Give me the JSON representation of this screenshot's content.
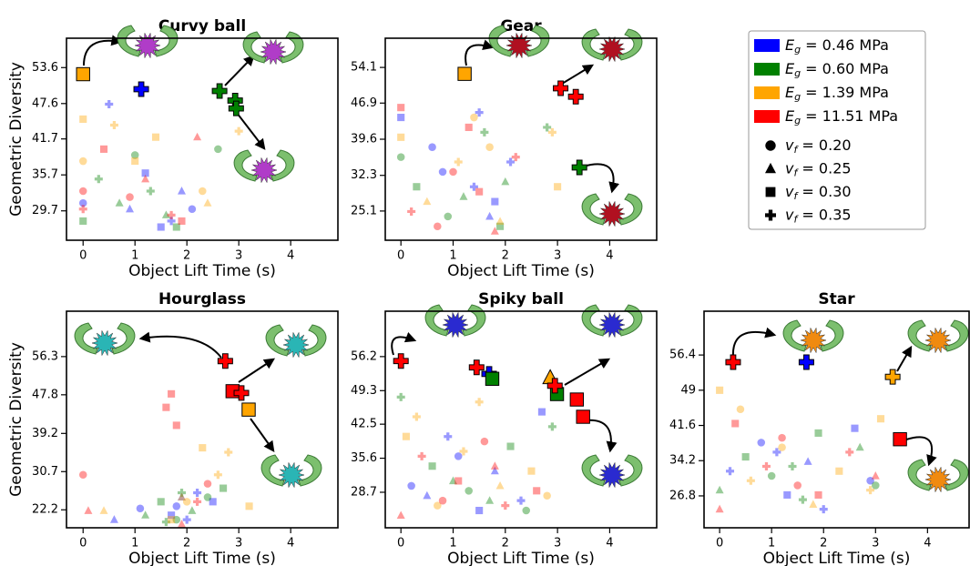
{
  "chart_data": [
    {
      "type": "scatter",
      "title": "Curvy ball",
      "xlabel": "Object Lift Time (s)",
      "ylabel": "Geometric Diversity",
      "xlim": [
        -0.32,
        4.91
      ],
      "xticks": [
        0,
        1,
        2,
        3,
        4
      ],
      "ylim": [
        24.8,
        58.5
      ],
      "yticks": [
        29.7,
        35.7,
        41.7,
        47.6,
        53.6
      ],
      "series": [
        {
          "color": "#0000ff",
          "x": [
            0,
            0.9,
            1.5,
            1.7,
            1.9,
            1.2,
            2.1,
            0.5
          ],
          "y": [
            31,
            30,
            27,
            28,
            33,
            36,
            30,
            47.5
          ],
          "markers": [
            "o",
            "^",
            "s",
            "P",
            "^",
            "s",
            "o",
            "P"
          ]
        },
        {
          "color": "#008000",
          "x": [
            0,
            0.3,
            1.0,
            1.6,
            1.8,
            1.3,
            0.7,
            2.6
          ],
          "y": [
            28,
            35,
            39,
            29,
            27,
            33,
            31,
            40
          ],
          "markers": [
            "s",
            "P",
            "o",
            "^",
            "s",
            "P",
            "^",
            "o"
          ]
        },
        {
          "color": "#ffa500",
          "x": [
            0,
            0.6,
            1.0,
            2.3,
            2.4,
            1.4,
            3.0,
            0
          ],
          "y": [
            45,
            44,
            38,
            33,
            31,
            42,
            43,
            38
          ],
          "markers": [
            "s",
            "P",
            "s",
            "o",
            "^",
            "s",
            "P",
            "o"
          ]
        },
        {
          "color": "#ff0000",
          "x": [
            0,
            0.4,
            1.2,
            1.7,
            1.9,
            0.9,
            2.2,
            0
          ],
          "y": [
            33,
            40,
            35,
            29,
            28,
            32,
            42,
            30
          ],
          "markers": [
            "o",
            "s",
            "^",
            "P",
            "s",
            "o",
            "^",
            "P"
          ]
        }
      ],
      "highlights": {
        "x": [
          0,
          1.12,
          2.63,
          2.93,
          2.95
        ],
        "y": [
          52.5,
          50.0,
          49.7,
          48.1,
          46.8
        ],
        "colors": [
          "#ffa500",
          "#0000ff",
          "#008000",
          "#008000",
          "#008000"
        ],
        "markers": [
          "s",
          "P",
          "P",
          "P",
          "P"
        ]
      },
      "object_color": "#b03cc8"
    },
    {
      "type": "scatter",
      "title": "Gear",
      "xlabel": "Object Lift Time (s)",
      "xlim": [
        -0.3,
        4.9
      ],
      "xticks": [
        0,
        1,
        2,
        3,
        4
      ],
      "ylim": [
        19.2,
        60.0
      ],
      "yticks": [
        25.1,
        32.3,
        39.6,
        46.9,
        54.1
      ],
      "series": [
        {
          "color": "#0000ff",
          "x": [
            0,
            0.6,
            1.4,
            1.7,
            1.8,
            2.1,
            0.8,
            1.5
          ],
          "y": [
            44,
            38,
            30,
            24,
            27,
            35,
            33,
            45
          ],
          "markers": [
            "s",
            "o",
            "P",
            "^",
            "s",
            "P",
            "o",
            "P"
          ]
        },
        {
          "color": "#008000",
          "x": [
            0,
            0.3,
            1.2,
            1.6,
            1.9,
            2.8,
            0.9,
            2.0
          ],
          "y": [
            36,
            30,
            28,
            41,
            22,
            42,
            24,
            31
          ],
          "markers": [
            "o",
            "s",
            "^",
            "P",
            "s",
            "P",
            "o",
            "^"
          ]
        },
        {
          "color": "#ffa500",
          "x": [
            0,
            1.1,
            1.7,
            1.9,
            2.9,
            3.0,
            0.5,
            1.4
          ],
          "y": [
            40,
            35,
            38,
            23,
            41,
            30,
            27,
            44
          ],
          "markers": [
            "s",
            "P",
            "o",
            "^",
            "P",
            "s",
            "^",
            "o"
          ]
        },
        {
          "color": "#ff0000",
          "x": [
            0,
            0.2,
            1.0,
            1.5,
            1.8,
            2.2,
            1.3,
            0.7
          ],
          "y": [
            46,
            25,
            33,
            29,
            21,
            36,
            42,
            22
          ],
          "markers": [
            "s",
            "P",
            "o",
            "s",
            "^",
            "P",
            "s",
            "o"
          ]
        }
      ],
      "highlights": {
        "x": [
          1.22,
          3.06,
          3.35,
          3.42
        ],
        "y": [
          52.8,
          49.9,
          48.2,
          33.9
        ],
        "colors": [
          "#ffa500",
          "#ff0000",
          "#ff0000",
          "#008000"
        ],
        "markers": [
          "s",
          "P",
          "P",
          "P"
        ]
      },
      "object_color": "#b01020"
    },
    {
      "type": "scatter",
      "title": "Hourglass",
      "xlabel": "Object Lift Time (s)",
      "ylabel": "Geometric Diversity",
      "xlim": [
        -0.32,
        4.91
      ],
      "xticks": [
        0,
        1,
        2,
        3,
        4
      ],
      "ylim": [
        18.2,
        66.4
      ],
      "yticks": [
        22.2,
        30.7,
        39.2,
        47.8,
        56.3
      ],
      "series": [
        {
          "color": "#0000ff",
          "x": [
            1.1,
            1.7,
            1.9,
            2.0,
            2.5,
            1.8,
            0.6,
            2.2
          ],
          "y": [
            22.5,
            21,
            25,
            20,
            24,
            23,
            20,
            26
          ],
          "markers": [
            "o",
            "s",
            "^",
            "P",
            "s",
            "o",
            "^",
            "P"
          ]
        },
        {
          "color": "#008000",
          "x": [
            1.5,
            1.8,
            1.9,
            2.1,
            2.7,
            1.6,
            2.4,
            1.2
          ],
          "y": [
            24,
            20,
            26,
            22,
            27,
            19.5,
            25,
            21
          ],
          "markers": [
            "s",
            "o",
            "P",
            "^",
            "s",
            "P",
            "o",
            "^"
          ]
        },
        {
          "color": "#ffa500",
          "x": [
            0.4,
            1.7,
            2.0,
            2.6,
            3.2,
            2.8,
            1.9,
            2.3
          ],
          "y": [
            22,
            20,
            24,
            30,
            23,
            35,
            25,
            36
          ],
          "markers": [
            "^",
            "s",
            "o",
            "P",
            "s",
            "P",
            "^",
            "s"
          ]
        },
        {
          "color": "#ff0000",
          "x": [
            0,
            0.1,
            1.6,
            1.8,
            1.9,
            2.2,
            1.7,
            2.4
          ],
          "y": [
            30,
            22,
            45,
            41,
            19,
            24,
            48,
            28
          ],
          "markers": [
            "o",
            "^",
            "s",
            "s",
            "^",
            "P",
            "s",
            "o"
          ]
        }
      ],
      "highlights": {
        "x": [
          2.74,
          2.88,
          3.05,
          3.19
        ],
        "y": [
          55.3,
          48.6,
          48.2,
          44.5
        ],
        "colors": [
          "#ff0000",
          "#ff0000",
          "#ff0000",
          "#ffa500"
        ],
        "markers": [
          "P",
          "s",
          "P",
          "s"
        ]
      },
      "object_color": "#2ab5b5"
    },
    {
      "type": "scatter",
      "title": "Spiky ball",
      "xlabel": "Object Lift Time (s)",
      "xlim": [
        -0.3,
        4.9
      ],
      "xticks": [
        0,
        1,
        2,
        3,
        4
      ],
      "ylim": [
        21.5,
        65.4
      ],
      "yticks": [
        28.7,
        35.6,
        42.5,
        49.3,
        56.2
      ],
      "series": [
        {
          "color": "#0000ff",
          "x": [
            0.2,
            0.9,
            1.5,
            1.8,
            2.3,
            2.7,
            1.1,
            0.5
          ],
          "y": [
            30,
            40,
            25,
            33,
            27,
            45,
            36,
            28
          ],
          "markers": [
            "o",
            "P",
            "s",
            "^",
            "P",
            "s",
            "o",
            "^"
          ]
        },
        {
          "color": "#008000",
          "x": [
            0,
            0.6,
            1.3,
            1.7,
            2.1,
            2.9,
            1.0,
            2.4
          ],
          "y": [
            48,
            34,
            29,
            27,
            38,
            42,
            31,
            25
          ],
          "markers": [
            "P",
            "s",
            "o",
            "^",
            "s",
            "P",
            "^",
            "o"
          ]
        },
        {
          "color": "#ffa500",
          "x": [
            0.1,
            0.7,
            1.2,
            1.9,
            2.5,
            2.8,
            1.5,
            0.3
          ],
          "y": [
            40,
            26,
            37,
            30,
            33,
            28,
            47,
            44
          ],
          "markers": [
            "s",
            "o",
            "P",
            "^",
            "s",
            "o",
            "P",
            "P"
          ]
        },
        {
          "color": "#ff0000",
          "x": [
            0,
            0.4,
            1.1,
            1.6,
            2.0,
            2.6,
            0.8,
            1.8
          ],
          "y": [
            24,
            36,
            31,
            39,
            26,
            29,
            27,
            34
          ],
          "markers": [
            "^",
            "P",
            "s",
            "o",
            "P",
            "s",
            "o",
            "^"
          ]
        }
      ],
      "highlights": {
        "x": [
          0,
          1.45,
          1.69,
          1.75,
          2.86,
          2.99,
          2.95,
          3.37,
          3.49
        ],
        "y": [
          55.3,
          54.0,
          52.7,
          51.7,
          51.9,
          48.6,
          50.3,
          47.5,
          44.0
        ],
        "colors": [
          "#ff0000",
          "#ff0000",
          "#0000ff",
          "#008000",
          "#ffa500",
          "#008000",
          "#ff0000",
          "#ff0000",
          "#ff0000"
        ],
        "markers": [
          "P",
          "P",
          "P",
          "s",
          "^",
          "s",
          "P",
          "s",
          "s"
        ]
      },
      "object_color": "#2a2ad0"
    },
    {
      "type": "scatter",
      "title": "Star",
      "xlabel": "Object Lift Time (s)",
      "xlim": [
        -0.3,
        4.8
      ],
      "xticks": [
        0,
        1,
        2,
        3,
        4
      ],
      "ylim": [
        20.1,
        65.6
      ],
      "yticks": [
        26.8,
        34.2,
        41.6,
        49.0,
        56.4
      ],
      "series": [
        {
          "color": "#0000ff",
          "x": [
            0.2,
            0.8,
            1.3,
            1.7,
            2.0,
            2.6,
            2.9,
            1.1
          ],
          "y": [
            32,
            38,
            27,
            34,
            24,
            41,
            30,
            36
          ],
          "markers": [
            "P",
            "o",
            "s",
            "^",
            "P",
            "s",
            "o",
            "P"
          ]
        },
        {
          "color": "#008000",
          "x": [
            0,
            0.5,
            1.0,
            1.6,
            1.9,
            2.7,
            3.0,
            1.4
          ],
          "y": [
            28,
            35,
            31,
            26,
            40,
            37,
            29,
            33
          ],
          "markers": [
            "^",
            "s",
            "o",
            "P",
            "s",
            "^",
            "o",
            "P"
          ]
        },
        {
          "color": "#ffa500",
          "x": [
            0,
            0.6,
            1.2,
            1.8,
            2.3,
            2.9,
            3.1,
            0.4
          ],
          "y": [
            49,
            30,
            37,
            25,
            32,
            28,
            43,
            45
          ],
          "markers": [
            "s",
            "P",
            "o",
            "^",
            "s",
            "P",
            "s",
            "o"
          ]
        },
        {
          "color": "#ff0000",
          "x": [
            0,
            0.3,
            0.9,
            1.5,
            1.9,
            2.5,
            3.0,
            1.2
          ],
          "y": [
            24,
            42,
            33,
            29,
            27,
            36,
            31,
            39
          ],
          "markers": [
            "^",
            "s",
            "P",
            "o",
            "s",
            "P",
            "^",
            "o"
          ]
        }
      ],
      "highlights": {
        "x": [
          0.26,
          1.67,
          3.33,
          3.47
        ],
        "y": [
          54.9,
          54.9,
          51.8,
          38.7
        ],
        "colors": [
          "#ff0000",
          "#0000ff",
          "#ffa500",
          "#ff0000"
        ],
        "markers": [
          "P",
          "P",
          "P",
          "s"
        ]
      },
      "object_color": "#f08a10"
    }
  ],
  "legend": {
    "colors": [
      {
        "symbol": "E",
        "sub": "g",
        "text": " = 0.46 MPa",
        "color": "#0000ff"
      },
      {
        "symbol": "E",
        "sub": "g",
        "text": " = 0.60 MPa",
        "color": "#008000"
      },
      {
        "symbol": "E",
        "sub": "g",
        "text": " = 1.39 MPa",
        "color": "#ffa500"
      },
      {
        "symbol": "E",
        "sub": "g",
        "text": " = 11.51 MPa",
        "color": "#ff0000"
      }
    ],
    "markers": [
      {
        "symbol": "v",
        "sub": "f",
        "text": " = 0.20",
        "marker": "o"
      },
      {
        "symbol": "v",
        "sub": "f",
        "text": " = 0.25",
        "marker": "^"
      },
      {
        "symbol": "v",
        "sub": "f",
        "text": " = 0.30",
        "marker": "s"
      },
      {
        "symbol": "v",
        "sub": "f",
        "text": " = 0.35",
        "marker": "P"
      }
    ]
  }
}
